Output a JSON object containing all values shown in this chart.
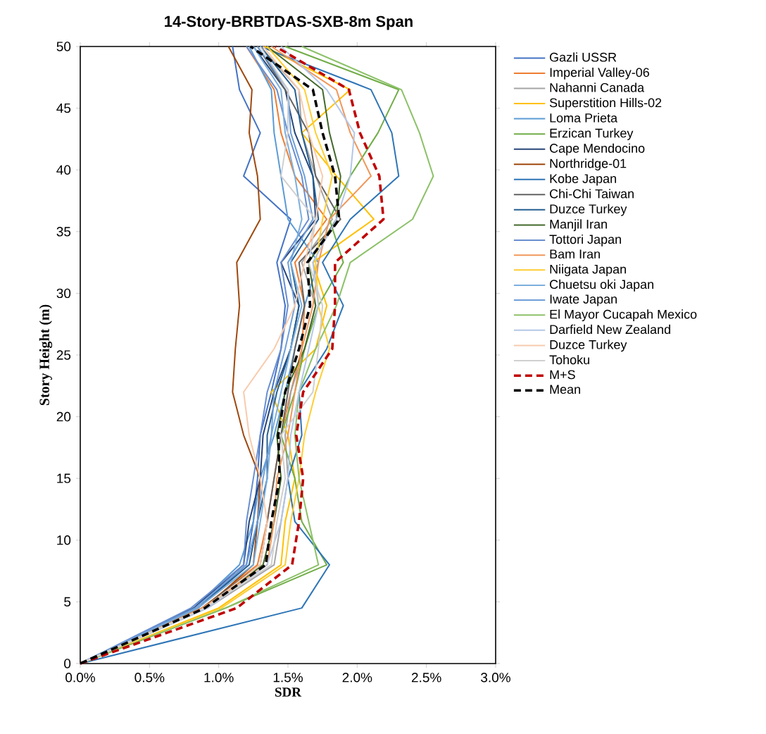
{
  "chart_data": {
    "type": "line",
    "title": "14-Story-BRBTDAS-SXB-8m Span",
    "xlabel": "SDR",
    "ylabel": "Story Height (m)",
    "xlim": [
      0,
      3
    ],
    "ylim": [
      0,
      50
    ],
    "xticks": [
      {
        "value": 0,
        "label": "0.0%"
      },
      {
        "value": 0.5,
        "label": "0.5%"
      },
      {
        "value": 1,
        "label": "1.0%"
      },
      {
        "value": 1.5,
        "label": "1.5%"
      },
      {
        "value": 2,
        "label": "2.0%"
      },
      {
        "value": 2.5,
        "label": "2.5%"
      },
      {
        "value": 3,
        "label": "3.0%"
      }
    ],
    "yticks": [
      0,
      5,
      10,
      15,
      20,
      25,
      30,
      35,
      40,
      45,
      50
    ],
    "legend": "right",
    "grid": false,
    "series": [
      {
        "name": "Gazli USSR",
        "color": "#4472c4",
        "x": [
          0,
          0.85,
          1.2,
          1.25,
          1.28,
          1.3,
          1.38,
          1.45,
          1.48,
          1.42,
          1.52,
          1.18,
          1.3,
          1.15,
          1.1
        ],
        "values": [
          0,
          4.5,
          8,
          11.5,
          15,
          18.5,
          22,
          25.5,
          29,
          32.5,
          36,
          39.5,
          43,
          46.5,
          50
        ]
      },
      {
        "name": "Imperial Valley-06",
        "color": "#ed7d31",
        "x": [
          0,
          0.88,
          1.28,
          1.35,
          1.4,
          1.45,
          1.52,
          1.6,
          1.62,
          1.55,
          1.78,
          1.55,
          1.45,
          1.4,
          1.2
        ],
        "values": [
          0,
          4.5,
          8,
          11.5,
          15,
          18.5,
          22,
          25.5,
          29,
          32.5,
          36,
          39.5,
          43,
          46.5,
          50
        ]
      },
      {
        "name": "Nahanni Canada",
        "color": "#a5a5a5",
        "x": [
          0,
          0.92,
          1.4,
          1.45,
          1.5,
          1.48,
          1.52,
          1.62,
          1.7,
          1.6,
          1.82,
          1.7,
          1.6,
          1.58,
          1.3
        ],
        "values": [
          0,
          4.5,
          8,
          11.5,
          15,
          18.5,
          22,
          25.5,
          29,
          32.5,
          36,
          39.5,
          43,
          46.5,
          50
        ]
      },
      {
        "name": "Superstition Hills-02",
        "color": "#ffc000",
        "x": [
          0,
          1.0,
          1.45,
          1.48,
          1.55,
          1.5,
          1.38,
          1.7,
          1.78,
          1.68,
          2.12,
          1.85,
          1.6,
          1.95,
          1.33
        ],
        "values": [
          0,
          4.5,
          8,
          11.5,
          15,
          18.5,
          22,
          25.5,
          29,
          32.5,
          36,
          39.5,
          43,
          46.5,
          50
        ]
      },
      {
        "name": "Loma Prieta",
        "color": "#5b9bd5",
        "x": [
          0,
          0.82,
          1.15,
          1.25,
          1.3,
          1.4,
          1.48,
          1.55,
          1.62,
          1.72,
          1.5,
          1.45,
          1.4,
          1.38,
          1.22
        ],
        "values": [
          0,
          4.5,
          8,
          11.5,
          15,
          18.5,
          22,
          25.5,
          29,
          32.5,
          36,
          39.5,
          43,
          46.5,
          50
        ]
      },
      {
        "name": "Erzican Turkey",
        "color": "#70ad47",
        "x": [
          0,
          1.05,
          1.78,
          1.6,
          1.55,
          1.45,
          1.55,
          1.62,
          1.72,
          1.9,
          1.8,
          1.95,
          2.15,
          2.3,
          1.48
        ],
        "values": [
          0,
          4.5,
          8,
          11.5,
          15,
          18.5,
          22,
          25.5,
          29,
          32.5,
          36,
          39.5,
          43,
          46.5,
          50
        ]
      },
      {
        "name": "Cape Mendocino",
        "color": "#264478",
        "x": [
          0,
          0.82,
          1.18,
          1.22,
          1.3,
          1.32,
          1.4,
          1.52,
          1.58,
          1.45,
          1.7,
          1.68,
          1.55,
          1.48,
          1.25
        ],
        "values": [
          0,
          4.5,
          8,
          11.5,
          15,
          18.5,
          22,
          25.5,
          29,
          32.5,
          36,
          39.5,
          43,
          46.5,
          50
        ]
      },
      {
        "name": "Northridge-01",
        "color": "#9e480e",
        "x": [
          0,
          0.9,
          1.25,
          1.28,
          1.3,
          1.18,
          1.1,
          1.12,
          1.15,
          1.13,
          1.3,
          1.28,
          1.22,
          1.24,
          1.07
        ],
        "values": [
          0,
          4.5,
          8,
          11.5,
          15,
          18.5,
          22,
          25.5,
          29,
          32.5,
          36,
          39.5,
          43,
          46.5,
          50
        ]
      },
      {
        "name": "Kobe Japan",
        "color": "#2e75b6",
        "x": [
          0,
          1.6,
          1.8,
          1.55,
          1.5,
          1.6,
          1.58,
          1.78,
          1.9,
          1.75,
          1.95,
          2.3,
          2.25,
          2.1,
          1.3
        ],
        "values": [
          0,
          4.5,
          8,
          11.5,
          15,
          18.5,
          22,
          25.5,
          29,
          32.5,
          36,
          39.5,
          43,
          46.5,
          50
        ]
      },
      {
        "name": "Chi-Chi Taiwan",
        "color": "#636363",
        "x": [
          0,
          0.88,
          1.3,
          1.35,
          1.4,
          1.45,
          1.5,
          1.55,
          1.62,
          1.58,
          1.88,
          1.7,
          1.65,
          1.48,
          1.28
        ],
        "values": [
          0,
          4.5,
          8,
          11.5,
          15,
          18.5,
          22,
          25.5,
          29,
          32.5,
          36,
          39.5,
          43,
          46.5,
          50
        ]
      },
      {
        "name": "Duzce Turkey",
        "color": "#255e91",
        "x": [
          0,
          0.85,
          1.22,
          1.28,
          1.35,
          1.35,
          1.42,
          1.52,
          1.58,
          1.52,
          1.72,
          1.68,
          1.6,
          1.55,
          1.3
        ],
        "values": [
          0,
          4.5,
          8,
          11.5,
          15,
          18.5,
          22,
          25.5,
          29,
          32.5,
          36,
          39.5,
          43,
          46.5,
          50
        ]
      },
      {
        "name": "Manjil Iran",
        "color": "#43682b",
        "x": [
          0,
          0.9,
          1.32,
          1.4,
          1.45,
          1.42,
          1.48,
          1.62,
          1.7,
          1.65,
          1.85,
          1.88,
          1.8,
          1.75,
          1.35
        ],
        "values": [
          0,
          4.5,
          8,
          11.5,
          15,
          18.5,
          22,
          25.5,
          29,
          32.5,
          36,
          39.5,
          43,
          46.5,
          50
        ]
      },
      {
        "name": "Tottori Japan",
        "color": "#698ed0",
        "x": [
          0,
          0.8,
          1.18,
          1.2,
          1.25,
          1.3,
          1.35,
          1.45,
          1.5,
          1.45,
          1.65,
          1.6,
          1.5,
          1.42,
          1.2
        ],
        "values": [
          0,
          4.5,
          8,
          11.5,
          15,
          18.5,
          22,
          25.5,
          29,
          32.5,
          36,
          39.5,
          43,
          46.5,
          50
        ]
      },
      {
        "name": "Bam Iran",
        "color": "#f1975a",
        "x": [
          0,
          0.88,
          1.35,
          1.4,
          1.42,
          1.5,
          1.55,
          1.6,
          1.68,
          1.72,
          1.8,
          2.1,
          1.95,
          1.85,
          1.38
        ],
        "values": [
          0,
          4.5,
          8,
          11.5,
          15,
          18.5,
          22,
          25.5,
          29,
          32.5,
          36,
          39.5,
          43,
          46.5,
          50
        ]
      },
      {
        "name": "Niigata Japan",
        "color": "#ffcd33",
        "x": [
          0,
          1.02,
          1.48,
          1.52,
          1.58,
          1.62,
          1.7,
          1.8,
          1.72,
          1.7,
          1.75,
          1.82,
          1.7,
          1.62,
          1.35
        ],
        "values": [
          0,
          4.5,
          8,
          11.5,
          15,
          18.5,
          22,
          25.5,
          29,
          32.5,
          36,
          39.5,
          43,
          46.5,
          50
        ]
      },
      {
        "name": "Chuetsu oki Japan",
        "color": "#7cafdd",
        "x": [
          0,
          0.85,
          1.25,
          1.3,
          1.35,
          1.38,
          1.45,
          1.52,
          1.6,
          1.52,
          1.6,
          1.55,
          1.48,
          1.45,
          1.25
        ],
        "values": [
          0,
          4.5,
          8,
          11.5,
          15,
          18.5,
          22,
          25.5,
          29,
          32.5,
          36,
          39.5,
          43,
          46.5,
          50
        ]
      },
      {
        "name": "Iwate Japan",
        "color": "#6f9fd8",
        "x": [
          0,
          0.83,
          1.2,
          1.28,
          1.32,
          1.38,
          1.4,
          1.48,
          1.55,
          1.5,
          1.68,
          1.62,
          1.52,
          1.5,
          1.28
        ],
        "values": [
          0,
          4.5,
          8,
          11.5,
          15,
          18.5,
          22,
          25.5,
          29,
          32.5,
          36,
          39.5,
          43,
          46.5,
          50
        ]
      },
      {
        "name": "El Mayor Cucapah Mexico",
        "color": "#8cc168",
        "x": [
          0,
          1.05,
          1.72,
          1.65,
          1.58,
          1.55,
          1.58,
          1.7,
          1.85,
          1.95,
          2.4,
          2.55,
          2.45,
          2.32,
          1.6
        ],
        "values": [
          0,
          4.5,
          8,
          11.5,
          15,
          18.5,
          22,
          25.5,
          29,
          32.5,
          36,
          39.5,
          43,
          46.5,
          50
        ]
      },
      {
        "name": "Darfield New Zealand",
        "color": "#b4c7e7",
        "x": [
          0,
          0.92,
          1.35,
          1.45,
          1.5,
          1.52,
          1.58,
          1.65,
          1.72,
          1.68,
          1.85,
          1.95,
          1.98,
          1.78,
          1.45
        ],
        "values": [
          0,
          4.5,
          8,
          11.5,
          15,
          18.5,
          22,
          25.5,
          29,
          32.5,
          36,
          39.5,
          43,
          46.5,
          50
        ]
      },
      {
        "name": "Duzce Turkey",
        "color": "#f8cbad",
        "x": [
          0,
          0.9,
          1.3,
          1.35,
          1.3,
          1.22,
          1.18,
          1.4,
          1.55,
          1.62,
          1.7,
          1.75,
          1.65,
          1.58,
          1.32
        ],
        "values": [
          0,
          4.5,
          8,
          11.5,
          15,
          18.5,
          22,
          25.5,
          29,
          32.5,
          36,
          39.5,
          43,
          46.5,
          50
        ]
      },
      {
        "name": "Tohoku",
        "color": "#d0d0d0",
        "x": [
          0,
          0.9,
          1.38,
          1.42,
          1.48,
          1.45,
          1.68,
          1.72,
          1.75,
          1.65,
          1.7,
          1.45,
          1.5,
          1.5,
          1.3
        ],
        "values": [
          0,
          4.5,
          8,
          11.5,
          15,
          18.5,
          22,
          25.5,
          29,
          32.5,
          36,
          39.5,
          43,
          46.5,
          50
        ]
      },
      {
        "name": "M+S",
        "color": "#c00000",
        "line_style": "dashed",
        "x": [
          0,
          1.13,
          1.53,
          1.58,
          1.61,
          1.56,
          1.61,
          1.82,
          1.84,
          1.84,
          2.19,
          2.16,
          2.02,
          1.94,
          1.41
        ],
        "values": [
          0,
          4.5,
          8,
          11.5,
          15,
          18.5,
          22,
          25.5,
          29,
          32.5,
          36,
          39.5,
          43,
          46.5,
          50
        ]
      },
      {
        "name": "Mean",
        "color": "#000000",
        "line_style": "dashed",
        "x": [
          0,
          0.9,
          1.34,
          1.38,
          1.44,
          1.43,
          1.48,
          1.58,
          1.66,
          1.64,
          1.87,
          1.84,
          1.75,
          1.68,
          1.23
        ],
        "values": [
          0,
          4.5,
          8,
          11.5,
          15,
          18.5,
          22,
          25.5,
          29,
          32.5,
          36,
          39.5,
          43,
          46.5,
          50
        ]
      }
    ]
  }
}
